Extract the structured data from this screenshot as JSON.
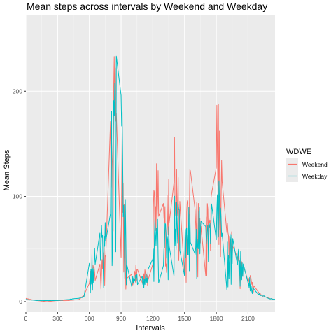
{
  "chart_data": {
    "type": "line",
    "title": "Mean steps across intervals by Weekend and Weekday",
    "xlabel": "Intervals",
    "ylabel": "Mean Steps",
    "xlim": [
      0,
      2355
    ],
    "ylim": [
      -10,
      272
    ],
    "x_ticks": [
      0,
      300,
      600,
      900,
      1200,
      1500,
      1800,
      2100
    ],
    "x_tick_labels": [
      "0",
      "300",
      "600",
      "900",
      "1200",
      "1500",
      "1800",
      "2100"
    ],
    "y_ticks": [
      0,
      100,
      200
    ],
    "y_tick_labels": [
      "0",
      "100",
      "200"
    ],
    "grid": true,
    "legend": {
      "title": "WDWE",
      "position": "right"
    },
    "series": [
      {
        "name": "Weekend",
        "color": "#F8766D",
        "profile": [
          [
            0,
            3
          ],
          [
            100,
            1
          ],
          [
            200,
            0
          ],
          [
            300,
            1
          ],
          [
            400,
            1
          ],
          [
            500,
            2
          ],
          [
            550,
            6
          ],
          [
            600,
            20
          ],
          [
            630,
            25
          ],
          [
            660,
            28
          ],
          [
            700,
            32
          ],
          [
            730,
            40
          ],
          [
            760,
            45
          ],
          [
            780,
            80
          ],
          [
            800,
            140
          ],
          [
            820,
            160
          ],
          [
            840,
            185
          ],
          [
            860,
            200
          ],
          [
            870,
            230
          ],
          [
            880,
            272
          ],
          [
            895,
            205
          ],
          [
            910,
            130
          ],
          [
            925,
            90
          ],
          [
            940,
            40
          ],
          [
            960,
            25
          ],
          [
            1000,
            20
          ],
          [
            1050,
            30
          ],
          [
            1100,
            25
          ],
          [
            1150,
            20
          ],
          [
            1180,
            45
          ],
          [
            1200,
            85
          ],
          [
            1230,
            100
          ],
          [
            1260,
            95
          ],
          [
            1300,
            70
          ],
          [
            1340,
            80
          ],
          [
            1380,
            110
          ],
          [
            1400,
            130
          ],
          [
            1430,
            100
          ],
          [
            1460,
            85
          ],
          [
            1500,
            65
          ],
          [
            1530,
            90
          ],
          [
            1560,
            100
          ],
          [
            1600,
            75
          ],
          [
            1650,
            80
          ],
          [
            1700,
            70
          ],
          [
            1750,
            75
          ],
          [
            1780,
            110
          ],
          [
            1810,
            165
          ],
          [
            1830,
            140
          ],
          [
            1850,
            100
          ],
          [
            1880,
            75
          ],
          [
            1920,
            55
          ],
          [
            1960,
            50
          ],
          [
            2000,
            45
          ],
          [
            2050,
            30
          ],
          [
            2100,
            25
          ],
          [
            2150,
            12
          ],
          [
            2200,
            8
          ],
          [
            2250,
            5
          ],
          [
            2300,
            3
          ],
          [
            2355,
            2
          ]
        ],
        "noise": 0.35,
        "seed": 17
      },
      {
        "name": "Weekday",
        "color": "#00BFC4",
        "profile": [
          [
            0,
            2
          ],
          [
            100,
            1
          ],
          [
            200,
            1
          ],
          [
            300,
            1
          ],
          [
            400,
            2
          ],
          [
            500,
            3
          ],
          [
            550,
            5
          ],
          [
            600,
            30
          ],
          [
            630,
            40
          ],
          [
            660,
            45
          ],
          [
            700,
            50
          ],
          [
            730,
            55
          ],
          [
            760,
            55
          ],
          [
            780,
            70
          ],
          [
            800,
            125
          ],
          [
            820,
            150
          ],
          [
            840,
            175
          ],
          [
            860,
            200
          ],
          [
            880,
            210
          ],
          [
            895,
            195
          ],
          [
            910,
            140
          ],
          [
            930,
            90
          ],
          [
            960,
            30
          ],
          [
            1000,
            20
          ],
          [
            1050,
            25
          ],
          [
            1100,
            20
          ],
          [
            1150,
            20
          ],
          [
            1180,
            40
          ],
          [
            1200,
            60
          ],
          [
            1230,
            65
          ],
          [
            1260,
            60
          ],
          [
            1300,
            50
          ],
          [
            1340,
            60
          ],
          [
            1380,
            70
          ],
          [
            1400,
            80
          ],
          [
            1430,
            70
          ],
          [
            1460,
            60
          ],
          [
            1500,
            55
          ],
          [
            1530,
            65
          ],
          [
            1560,
            70
          ],
          [
            1600,
            60
          ],
          [
            1650,
            65
          ],
          [
            1700,
            55
          ],
          [
            1750,
            65
          ],
          [
            1780,
            85
          ],
          [
            1810,
            100
          ],
          [
            1840,
            90
          ],
          [
            1870,
            70
          ],
          [
            1900,
            50
          ],
          [
            1950,
            45
          ],
          [
            2000,
            40
          ],
          [
            2050,
            30
          ],
          [
            2100,
            20
          ],
          [
            2150,
            10
          ],
          [
            2200,
            7
          ],
          [
            2250,
            5
          ],
          [
            2300,
            3
          ],
          [
            2355,
            2
          ]
        ],
        "noise": 0.4,
        "seed": 41
      }
    ]
  }
}
